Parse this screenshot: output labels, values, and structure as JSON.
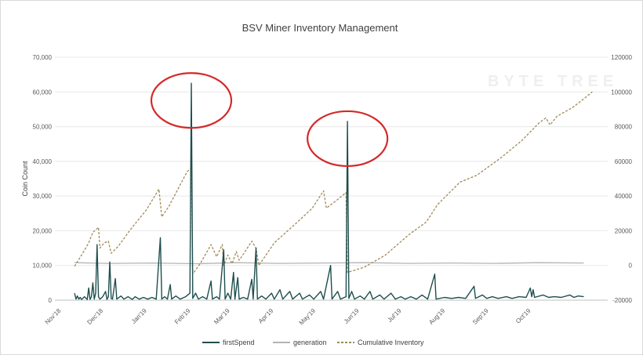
{
  "chart_data": {
    "type": "line",
    "title": "BSV Miner Inventory Management",
    "ylabel": "Coin Count",
    "xlabel": "",
    "watermark": "BYTE TREE",
    "x_ticks": [
      "Nov'18",
      "Dec'18",
      "Jan'19",
      "Feb'19",
      "Mar'19",
      "Apr'19",
      "May'19",
      "Jun'19",
      "Jul'19",
      "Aug'19",
      "Sep'19",
      "Oct'19"
    ],
    "y_left": {
      "ylim": [
        0,
        70000
      ],
      "ticks": [
        "0",
        "10,000",
        "20,000",
        "30,000",
        "40,000",
        "50,000",
        "60,000",
        "70,000"
      ]
    },
    "y_right": {
      "ylim": [
        -20000,
        120000
      ],
      "ticks": [
        "-20000",
        "0",
        "20000",
        "40000",
        "60000",
        "80000",
        "100000",
        "120000"
      ]
    },
    "grid": true,
    "legend_position": "bottom",
    "series": [
      {
        "name": "firstSpend",
        "axis": "left",
        "color": "#1f4e4e",
        "style": "solid",
        "points": [
          [
            "2018-11-15",
            2000
          ],
          [
            "2018-11-16",
            300
          ],
          [
            "2018-11-17",
            1200
          ],
          [
            "2018-11-18",
            300
          ],
          [
            "2018-11-19",
            800
          ],
          [
            "2018-11-20",
            200
          ],
          [
            "2018-11-22",
            1000
          ],
          [
            "2018-11-24",
            200
          ],
          [
            "2018-11-25",
            3500
          ],
          [
            "2018-11-26",
            200
          ],
          [
            "2018-11-27",
            1000
          ],
          [
            "2018-11-28",
            5000
          ],
          [
            "2018-11-29",
            300
          ],
          [
            "2018-11-30",
            2000
          ],
          [
            "2018-12-01",
            16000
          ],
          [
            "2018-12-02",
            1000
          ],
          [
            "2018-12-03",
            300
          ],
          [
            "2018-12-05",
            1000
          ],
          [
            "2018-12-07",
            2500
          ],
          [
            "2018-12-08",
            200
          ],
          [
            "2018-12-09",
            1000
          ],
          [
            "2018-12-10",
            11000
          ],
          [
            "2018-12-11",
            500
          ],
          [
            "2018-12-12",
            300
          ],
          [
            "2018-12-14",
            6200
          ],
          [
            "2018-12-15",
            300
          ],
          [
            "2018-12-18",
            1200
          ],
          [
            "2018-12-20",
            300
          ],
          [
            "2018-12-23",
            1000
          ],
          [
            "2018-12-26",
            200
          ],
          [
            "2018-12-28",
            1000
          ],
          [
            "2018-12-31",
            300
          ],
          [
            "2019-01-03",
            800
          ],
          [
            "2019-01-06",
            300
          ],
          [
            "2019-01-09",
            800
          ],
          [
            "2019-01-12",
            300
          ],
          [
            "2019-01-15",
            18000
          ],
          [
            "2019-01-16",
            300
          ],
          [
            "2019-01-18",
            1000
          ],
          [
            "2019-01-20",
            300
          ],
          [
            "2019-01-22",
            4500
          ],
          [
            "2019-01-23",
            300
          ],
          [
            "2019-01-26",
            1200
          ],
          [
            "2019-01-29",
            300
          ],
          [
            "2019-02-02",
            1000
          ],
          [
            "2019-02-05",
            2000
          ],
          [
            "2019-02-06",
            62500
          ],
          [
            "2019-02-07",
            500
          ],
          [
            "2019-02-09",
            2000
          ],
          [
            "2019-02-11",
            300
          ],
          [
            "2019-02-14",
            1000
          ],
          [
            "2019-02-17",
            300
          ],
          [
            "2019-02-20",
            5500
          ],
          [
            "2019-02-21",
            300
          ],
          [
            "2019-02-24",
            1000
          ],
          [
            "2019-02-26",
            300
          ],
          [
            "2019-03-01",
            14500
          ],
          [
            "2019-03-02",
            300
          ],
          [
            "2019-03-04",
            2000
          ],
          [
            "2019-03-06",
            300
          ],
          [
            "2019-03-08",
            8000
          ],
          [
            "2019-03-09",
            300
          ],
          [
            "2019-03-11",
            6500
          ],
          [
            "2019-03-12",
            300
          ],
          [
            "2019-03-15",
            800
          ],
          [
            "2019-03-18",
            300
          ],
          [
            "2019-03-21",
            6000
          ],
          [
            "2019-03-22",
            300
          ],
          [
            "2019-03-24",
            15000
          ],
          [
            "2019-03-25",
            300
          ],
          [
            "2019-03-28",
            1200
          ],
          [
            "2019-03-31",
            300
          ],
          [
            "2019-04-04",
            2000
          ],
          [
            "2019-04-06",
            300
          ],
          [
            "2019-04-10",
            3000
          ],
          [
            "2019-04-12",
            300
          ],
          [
            "2019-04-17",
            2500
          ],
          [
            "2019-04-19",
            300
          ],
          [
            "2019-04-24",
            2000
          ],
          [
            "2019-04-26",
            300
          ],
          [
            "2019-05-01",
            1500
          ],
          [
            "2019-05-04",
            300
          ],
          [
            "2019-05-09",
            2500
          ],
          [
            "2019-05-11",
            300
          ],
          [
            "2019-05-16",
            10000
          ],
          [
            "2019-05-17",
            300
          ],
          [
            "2019-05-21",
            2500
          ],
          [
            "2019-05-23",
            300
          ],
          [
            "2019-05-27",
            1000
          ],
          [
            "2019-05-28",
            51500
          ],
          [
            "2019-05-29",
            500
          ],
          [
            "2019-05-31",
            2500
          ],
          [
            "2019-06-02",
            300
          ],
          [
            "2019-06-06",
            1200
          ],
          [
            "2019-06-09",
            300
          ],
          [
            "2019-06-13",
            2500
          ],
          [
            "2019-06-15",
            300
          ],
          [
            "2019-06-20",
            1500
          ],
          [
            "2019-06-23",
            300
          ],
          [
            "2019-06-28",
            2000
          ],
          [
            "2019-07-01",
            300
          ],
          [
            "2019-07-05",
            1000
          ],
          [
            "2019-07-08",
            300
          ],
          [
            "2019-07-12",
            1000
          ],
          [
            "2019-07-16",
            300
          ],
          [
            "2019-07-20",
            1500
          ],
          [
            "2019-07-24",
            300
          ],
          [
            "2019-07-29",
            7500
          ],
          [
            "2019-07-30",
            300
          ],
          [
            "2019-08-05",
            800
          ],
          [
            "2019-08-10",
            500
          ],
          [
            "2019-08-15",
            800
          ],
          [
            "2019-08-20",
            500
          ],
          [
            "2019-08-26",
            4000
          ],
          [
            "2019-08-27",
            500
          ],
          [
            "2019-09-01",
            1500
          ],
          [
            "2019-09-04",
            500
          ],
          [
            "2019-09-08",
            1000
          ],
          [
            "2019-09-12",
            500
          ],
          [
            "2019-09-18",
            1000
          ],
          [
            "2019-09-22",
            500
          ],
          [
            "2019-09-27",
            1000
          ],
          [
            "2019-10-02",
            800
          ],
          [
            "2019-10-05",
            3500
          ],
          [
            "2019-10-06",
            1000
          ],
          [
            "2019-10-07",
            3000
          ],
          [
            "2019-10-08",
            800
          ],
          [
            "2019-10-14",
            1500
          ],
          [
            "2019-10-18",
            800
          ],
          [
            "2019-10-22",
            1000
          ],
          [
            "2019-10-27",
            800
          ],
          [
            "2019-11-02",
            1500
          ],
          [
            "2019-11-05",
            800
          ],
          [
            "2019-11-08",
            1200
          ],
          [
            "2019-11-12",
            1000
          ]
        ]
      },
      {
        "name": "generation",
        "axis": "left",
        "color": "#b4b4b4",
        "style": "solid",
        "points": [
          [
            "2018-11-15",
            10800
          ],
          [
            "2018-12-10",
            10600
          ],
          [
            "2019-01-10",
            10700
          ],
          [
            "2019-02-10",
            10500
          ],
          [
            "2019-03-10",
            10800
          ],
          [
            "2019-04-10",
            10600
          ],
          [
            "2019-05-10",
            10700
          ],
          [
            "2019-06-10",
            10800
          ],
          [
            "2019-07-10",
            10600
          ],
          [
            "2019-08-10",
            10700
          ],
          [
            "2019-09-10",
            10600
          ],
          [
            "2019-10-10",
            10800
          ],
          [
            "2019-11-12",
            10700
          ]
        ]
      },
      {
        "name": "Cumulative Inventory",
        "axis": "right",
        "color": "#a08a5a",
        "style": "dashed",
        "points": [
          [
            "2018-11-15",
            -500
          ],
          [
            "2018-11-20",
            6000
          ],
          [
            "2018-11-25",
            13000
          ],
          [
            "2018-11-28",
            19000
          ],
          [
            "2018-12-02",
            22000
          ],
          [
            "2018-12-03",
            10000
          ],
          [
            "2018-12-06",
            13000
          ],
          [
            "2018-12-09",
            14000
          ],
          [
            "2018-12-11",
            7000
          ],
          [
            "2018-12-16",
            11000
          ],
          [
            "2018-12-25",
            21000
          ],
          [
            "2019-01-05",
            32000
          ],
          [
            "2019-01-14",
            44000
          ],
          [
            "2019-01-16",
            28000
          ],
          [
            "2019-01-21",
            34000
          ],
          [
            "2019-02-03",
            54000
          ],
          [
            "2019-02-06",
            56000
          ],
          [
            "2019-02-07",
            -5000
          ],
          [
            "2019-02-13",
            2000
          ],
          [
            "2019-02-20",
            12000
          ],
          [
            "2019-02-24",
            5000
          ],
          [
            "2019-02-28",
            12000
          ],
          [
            "2019-03-01",
            0
          ],
          [
            "2019-03-04",
            6000
          ],
          [
            "2019-03-07",
            1000
          ],
          [
            "2019-03-10",
            8000
          ],
          [
            "2019-03-12",
            3000
          ],
          [
            "2019-03-17",
            9000
          ],
          [
            "2019-03-21",
            14000
          ],
          [
            "2019-03-24",
            10000
          ],
          [
            "2019-03-26",
            0
          ],
          [
            "2019-04-06",
            13000
          ],
          [
            "2019-04-21",
            24000
          ],
          [
            "2019-05-03",
            33000
          ],
          [
            "2019-05-11",
            43000
          ],
          [
            "2019-05-13",
            33000
          ],
          [
            "2019-05-21",
            38000
          ],
          [
            "2019-05-27",
            42000
          ],
          [
            "2019-05-28",
            -4000
          ],
          [
            "2019-06-09",
            -1000
          ],
          [
            "2019-06-24",
            6000
          ],
          [
            "2019-07-11",
            18000
          ],
          [
            "2019-07-23",
            25000
          ],
          [
            "2019-07-31",
            35000
          ],
          [
            "2019-08-16",
            48000
          ],
          [
            "2019-08-28",
            52000
          ],
          [
            "2019-09-14",
            62000
          ],
          [
            "2019-09-29",
            72000
          ],
          [
            "2019-10-11",
            82000
          ],
          [
            "2019-10-16",
            85000
          ],
          [
            "2019-10-19",
            81000
          ],
          [
            "2019-10-24",
            86000
          ],
          [
            "2019-11-04",
            91000
          ],
          [
            "2019-11-12",
            96000
          ],
          [
            "2019-11-18",
            100000
          ]
        ]
      }
    ]
  }
}
